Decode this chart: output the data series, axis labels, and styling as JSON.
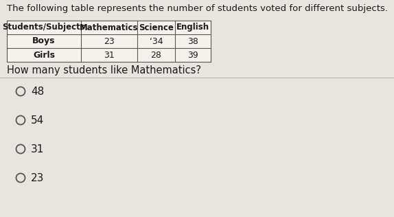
{
  "title": "The following table represents the number of students voted for different subjects.",
  "table_headers": [
    "Students/Subjects",
    "Mathematics",
    "Science",
    "English"
  ],
  "table_rows": [
    [
      "Boys",
      "23",
      "‘34",
      "38"
    ],
    [
      "Girls",
      "31",
      "28",
      "39"
    ]
  ],
  "question": "How many students like Mathematics?",
  "options": [
    "48",
    "54",
    "31",
    "23"
  ],
  "bg_color": "#e8e4df",
  "text_color": "#1a1a1a",
  "title_fontsize": 9.5,
  "question_fontsize": 10.5,
  "option_fontsize": 11,
  "table_header_fontsize": 8.5,
  "table_cell_fontsize": 9
}
